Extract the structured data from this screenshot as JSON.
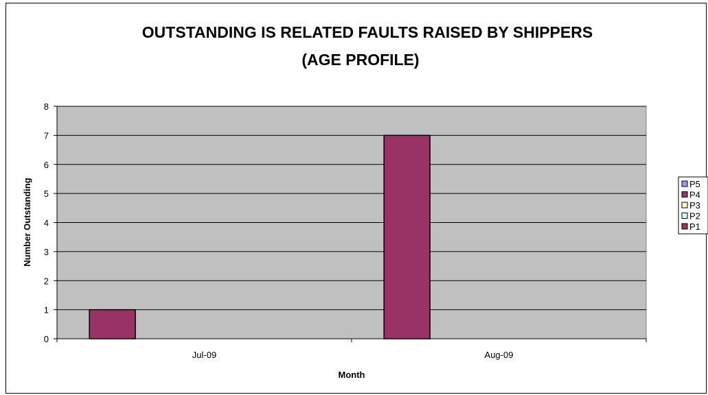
{
  "chart_data": {
    "type": "bar",
    "title": [
      "OUTSTANDING IS RELATED FAULTS RAISED BY SHIPPERS",
      "(AGE PROFILE)"
    ],
    "xlabel": "Month",
    "ylabel": "Number Outstanding",
    "categories": [
      "Jul-09",
      "Aug-09"
    ],
    "ylim": [
      0,
      8
    ],
    "yticks": [
      0,
      1,
      2,
      3,
      4,
      5,
      6,
      7,
      8
    ],
    "grid": true,
    "legend_position": "right",
    "series": [
      {
        "name": "P1",
        "color": "#993366",
        "values": [
          1,
          7
        ]
      },
      {
        "name": "P2",
        "color": "#CCFFFF",
        "values": [
          0,
          0
        ]
      },
      {
        "name": "P3",
        "color": "#FFFFCC",
        "values": [
          0,
          0
        ]
      },
      {
        "name": "P4",
        "color": "#993366",
        "values": [
          0,
          0
        ]
      },
      {
        "name": "P5",
        "color": "#9999FF",
        "values": [
          0,
          0
        ]
      }
    ],
    "legend_order": [
      "P5",
      "P4",
      "P3",
      "P2",
      "P1"
    ],
    "plot_background": "#C0C0C0"
  }
}
